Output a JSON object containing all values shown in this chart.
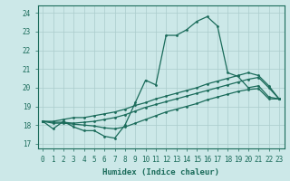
{
  "xlabel": "Humidex (Indice chaleur)",
  "xlim": [
    -0.5,
    23.5
  ],
  "ylim": [
    16.75,
    24.4
  ],
  "yticks": [
    17,
    18,
    19,
    20,
    21,
    22,
    23,
    24
  ],
  "xticks": [
    0,
    1,
    2,
    3,
    4,
    5,
    6,
    7,
    8,
    9,
    10,
    11,
    12,
    13,
    14,
    15,
    16,
    17,
    18,
    19,
    20,
    21,
    22,
    23
  ],
  "bg_color": "#cce8e8",
  "grid_color": "#aacccc",
  "line_color": "#1a6b5a",
  "line1_x": [
    0,
    1,
    2,
    3,
    4,
    5,
    6,
    7,
    8,
    9,
    10,
    11,
    12,
    13,
    14,
    15,
    16,
    17,
    18,
    19,
    20,
    21,
    22,
    23
  ],
  "line1_y": [
    18.2,
    17.8,
    18.2,
    17.9,
    17.7,
    17.7,
    17.4,
    17.3,
    18.0,
    19.2,
    20.4,
    20.15,
    22.8,
    22.8,
    23.1,
    23.55,
    23.8,
    23.3,
    20.8,
    20.6,
    20.0,
    20.1,
    19.5,
    19.4
  ],
  "line2_x": [
    0,
    1,
    2,
    3,
    4,
    5,
    6,
    7,
    8,
    9,
    10,
    11,
    12,
    13,
    14,
    15,
    16,
    17,
    18,
    19,
    20,
    21,
    22,
    23
  ],
  "line2_y": [
    18.2,
    18.2,
    18.3,
    18.4,
    18.4,
    18.5,
    18.6,
    18.7,
    18.85,
    19.05,
    19.2,
    19.4,
    19.55,
    19.7,
    19.85,
    20.0,
    20.2,
    20.35,
    20.5,
    20.65,
    20.8,
    20.65,
    20.1,
    19.4
  ],
  "line3_x": [
    0,
    1,
    2,
    3,
    4,
    5,
    6,
    7,
    8,
    9,
    10,
    11,
    12,
    13,
    14,
    15,
    16,
    17,
    18,
    19,
    20,
    21,
    22,
    23
  ],
  "line3_y": [
    18.2,
    18.15,
    18.15,
    18.1,
    18.15,
    18.2,
    18.3,
    18.4,
    18.55,
    18.75,
    18.95,
    19.1,
    19.25,
    19.4,
    19.55,
    19.7,
    19.85,
    20.0,
    20.15,
    20.3,
    20.45,
    20.55,
    20.0,
    19.4
  ],
  "line4_x": [
    0,
    1,
    2,
    3,
    4,
    5,
    6,
    7,
    8,
    9,
    10,
    11,
    12,
    13,
    14,
    15,
    16,
    17,
    18,
    19,
    20,
    21,
    22,
    23
  ],
  "line4_y": [
    18.2,
    18.1,
    18.1,
    18.05,
    18.0,
    17.95,
    17.85,
    17.8,
    17.9,
    18.1,
    18.3,
    18.5,
    18.7,
    18.85,
    19.0,
    19.15,
    19.35,
    19.5,
    19.65,
    19.8,
    19.9,
    19.95,
    19.4,
    19.4
  ]
}
